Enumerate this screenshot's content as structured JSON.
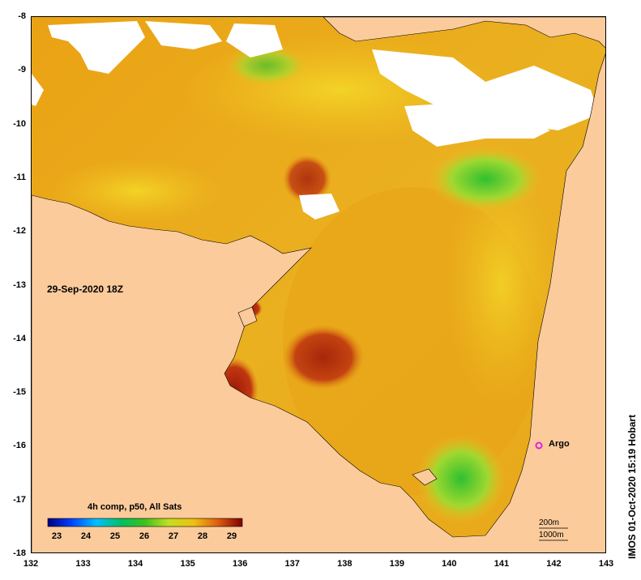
{
  "map": {
    "x_ticks": [
      "132",
      "133",
      "134",
      "135",
      "136",
      "137",
      "138",
      "139",
      "140",
      "141",
      "142",
      "143"
    ],
    "y_ticks": [
      "-8",
      "-9",
      "-10",
      "-11",
      "-12",
      "-13",
      "-14",
      "-15",
      "-16",
      "-17",
      "-18"
    ],
    "date_label": "29-Sep-2020 18Z",
    "argo_label": "Argo",
    "colors": {
      "land": "#fbcb9b",
      "cloud": "#ffffff",
      "sst_warm": "#e8a010",
      "sst_mid": "#f0c020",
      "sst_cool": "#40c040",
      "sst_hot": "#a01808",
      "argo": "#e020e0"
    }
  },
  "colorbar": {
    "title": "4h comp, p50, All Sats",
    "ticks": [
      "23",
      "24",
      "25",
      "26",
      "27",
      "28",
      "29"
    ]
  },
  "scale": {
    "top": "200m",
    "bottom": "1000m"
  },
  "credit": "IMOS 01-Oct-2020 15:19 Hobart"
}
